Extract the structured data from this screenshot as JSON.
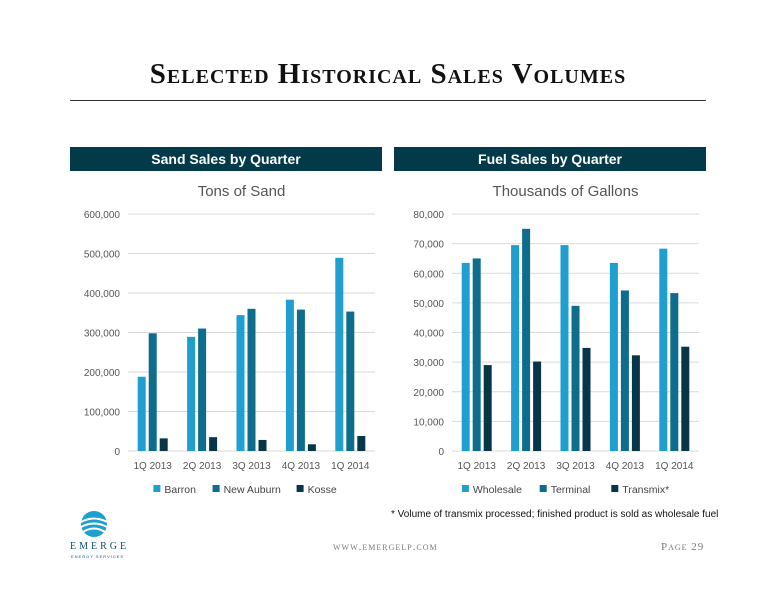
{
  "page": {
    "title": "Selected Historical Sales Volumes",
    "footnote": "* Volume of transmix processed; finished product is sold as wholesale fuel",
    "logo_text": "EMERGE",
    "logo_sub": "ENERGY SERVICES",
    "url": "www.emergelp.com",
    "page_label": "Page 29"
  },
  "colors": {
    "band": "#033a4a",
    "series": [
      "#1e9fd0",
      "#0e6c8c",
      "#063648"
    ]
  },
  "chart_data": [
    {
      "type": "bar",
      "band_title": "Sand Sales by Quarter",
      "title": "Tons of Sand",
      "categories": [
        "1Q 2013",
        "2Q 2013",
        "3Q 2013",
        "4Q 2013",
        "1Q 2014"
      ],
      "series": [
        {
          "name": "Barron",
          "values": [
            188000,
            289000,
            344000,
            383000,
            489000
          ]
        },
        {
          "name": "New Auburn",
          "values": [
            298000,
            310000,
            360000,
            358000,
            353000
          ]
        },
        {
          "name": "Kosse",
          "values": [
            32000,
            35000,
            28000,
            17000,
            38000
          ]
        }
      ],
      "ylim": [
        0,
        600000
      ],
      "yticks": [
        0,
        100000,
        200000,
        300000,
        400000,
        500000,
        600000
      ],
      "ytick_labels": [
        "0",
        "100,000",
        "200,000",
        "300,000",
        "400,000",
        "500,000",
        "600,000"
      ],
      "grid": true,
      "legend": "bottom"
    },
    {
      "type": "bar",
      "band_title": "Fuel Sales by Quarter",
      "title": "Thousands of Gallons",
      "categories": [
        "1Q 2013",
        "2Q 2013",
        "3Q 2013",
        "4Q 2013",
        "1Q 2014"
      ],
      "series": [
        {
          "name": "Wholesale",
          "values": [
            63500,
            69500,
            69500,
            63500,
            68300
          ]
        },
        {
          "name": "Terminal",
          "values": [
            65000,
            75000,
            49000,
            54200,
            53300
          ]
        },
        {
          "name": "Transmix*",
          "values": [
            29000,
            30200,
            34800,
            32300,
            35200
          ]
        }
      ],
      "ylim": [
        0,
        80000
      ],
      "yticks": [
        0,
        10000,
        20000,
        30000,
        40000,
        50000,
        60000,
        70000,
        80000
      ],
      "ytick_labels": [
        "0",
        "10,000",
        "20,000",
        "30,000",
        "40,000",
        "50,000",
        "60,000",
        "70,000",
        "80,000"
      ],
      "grid": true,
      "legend": "bottom"
    }
  ]
}
